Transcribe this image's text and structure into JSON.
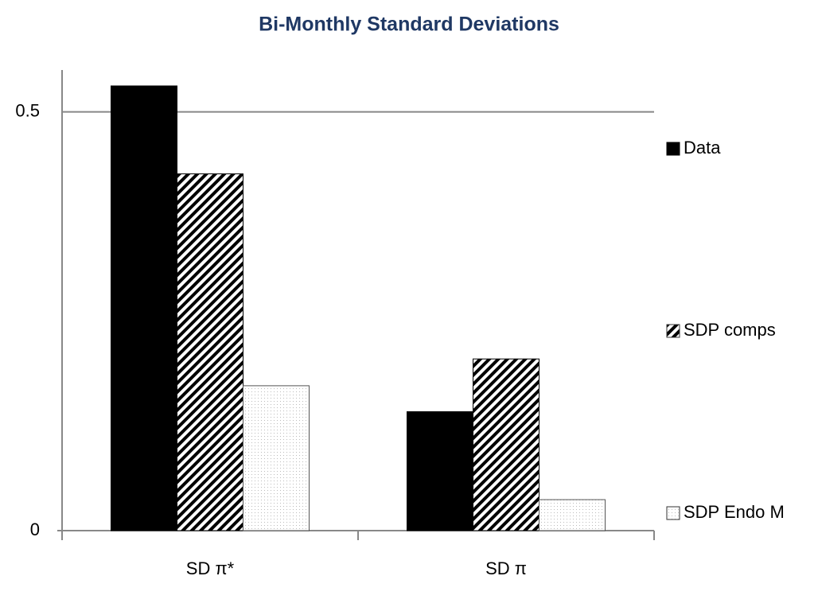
{
  "chart_data": {
    "type": "bar",
    "title": "Bi-Monthly Standard Deviations",
    "categories": [
      "SD π*",
      "SD π"
    ],
    "series": [
      {
        "name": "Data",
        "color": "#000000",
        "pattern": "solid",
        "values": [
          0.531,
          0.142
        ]
      },
      {
        "name": "SDP comps",
        "color": "#000000",
        "pattern": "hatch",
        "values": [
          0.426,
          0.205
        ]
      },
      {
        "name": "SDP Endo M",
        "color": "#bbbbbb",
        "pattern": "dots",
        "values": [
          0.173,
          0.037
        ]
      }
    ],
    "ylim": [
      0,
      0.55
    ],
    "yticks": [
      0,
      0.5
    ],
    "grid": true,
    "legend": "right"
  }
}
